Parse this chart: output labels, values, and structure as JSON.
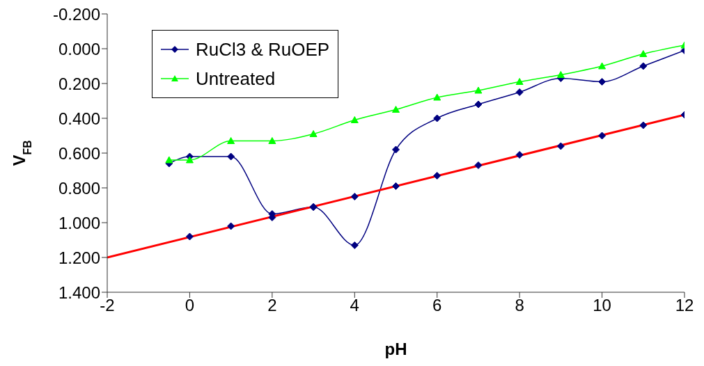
{
  "chart_data": {
    "type": "line",
    "xlabel": "pH",
    "ylabel": "V$_{FB}$",
    "xlim": [
      -2,
      12
    ],
    "xticks": [
      -2,
      0,
      2,
      4,
      6,
      8,
      10,
      12
    ],
    "ylim": [
      1.4,
      -0.2
    ],
    "yticks": [
      {
        "value": -0.2,
        "label": "-0.200"
      },
      {
        "value": 0,
        "label": "0.000"
      },
      {
        "value": 0.2,
        "label": "0.200"
      },
      {
        "value": 0.4,
        "label": "0.400"
      },
      {
        "value": 0.6,
        "label": "0.600"
      },
      {
        "value": 0.8,
        "label": "0.800"
      },
      {
        "value": 1.0,
        "label": "1.000"
      },
      {
        "value": 1.2,
        "label": "1.200"
      },
      {
        "value": 1.4,
        "label": "1.400"
      }
    ],
    "grid": false,
    "legend": "top left",
    "line_style": "solid",
    "series": [
      {
        "name": "RuCl3 & RuOEP",
        "color": "#000080",
        "marker": "diamond",
        "x": [
          -0.5,
          0,
          1,
          2,
          3,
          4,
          5,
          6,
          7,
          8,
          9,
          10,
          11,
          12
        ],
        "values": [
          0.66,
          0.62,
          0.62,
          0.95,
          0.91,
          1.13,
          0.58,
          0.4,
          0.32,
          0.25,
          0.17,
          0.19,
          0.1,
          0.01
        ]
      },
      {
        "name": "Untreated",
        "color": "#00ff00",
        "marker": "triangle",
        "x": [
          -0.5,
          0,
          1,
          2,
          3,
          4,
          5,
          6,
          7,
          8,
          9,
          10,
          11,
          12
        ],
        "values": [
          0.64,
          0.64,
          0.53,
          0.53,
          0.49,
          0.41,
          0.35,
          0.28,
          0.24,
          0.19,
          0.15,
          0.1,
          0.03,
          -0.02
        ]
      },
      {
        "type": "line",
        "color": "#ff0000",
        "marker": "none",
        "x": [
          -2,
          12
        ],
        "values": [
          1.2,
          0.38
        ]
      },
      {
        "type": "scatter",
        "color": "#000080",
        "marker": "diamond",
        "x": [
          0,
          1,
          2,
          3,
          4,
          5,
          6,
          7,
          8,
          9,
          10,
          11,
          12
        ],
        "values": [
          1.08,
          1.02,
          0.97,
          0.91,
          0.85,
          0.79,
          0.73,
          0.67,
          0.61,
          0.56,
          0.5,
          0.44,
          0.38
        ]
      }
    ]
  }
}
